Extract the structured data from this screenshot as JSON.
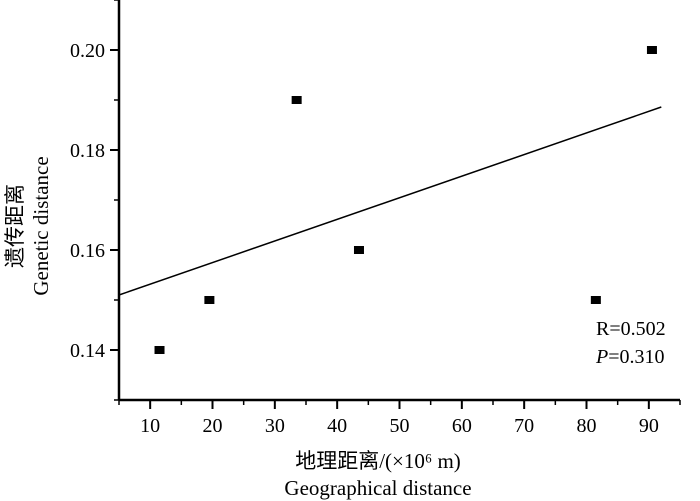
{
  "chart_data": {
    "type": "scatter",
    "title": "",
    "xlabel": "地理距离/(×10⁶ m)",
    "xlabel_en": "Geographical distance",
    "ylabel": "遗传距离",
    "ylabel_en": "Genetic distance",
    "xlim": [
      5,
      95
    ],
    "ylim": [
      0.13,
      0.21
    ],
    "x_ticks": [
      10,
      20,
      30,
      40,
      50,
      60,
      70,
      80,
      90
    ],
    "x_tick_labels": [
      "10",
      "20",
      "30",
      "40",
      "50",
      "60",
      "70",
      "80",
      "90"
    ],
    "y_ticks": [
      0.14,
      0.16,
      0.18,
      0.2
    ],
    "y_tick_labels": [
      "0.14",
      "0.16",
      "0.18",
      "0.20"
    ],
    "grid": false,
    "points": [
      {
        "x": 11.5,
        "y": 0.14
      },
      {
        "x": 19.5,
        "y": 0.15
      },
      {
        "x": 33.5,
        "y": 0.19
      },
      {
        "x": 43.5,
        "y": 0.16
      },
      {
        "x": 81.5,
        "y": 0.15
      },
      {
        "x": 90.5,
        "y": 0.2
      }
    ],
    "fit_line": {
      "x0": 5,
      "y0": 0.151,
      "x1": 92,
      "y1": 0.1886
    },
    "annotations": {
      "r_text": "R=0.502",
      "p_label": "P",
      "p_value": "=0.310"
    },
    "colors": {
      "marker": "#000000",
      "line": "#000000",
      "axis": "#000000"
    }
  }
}
